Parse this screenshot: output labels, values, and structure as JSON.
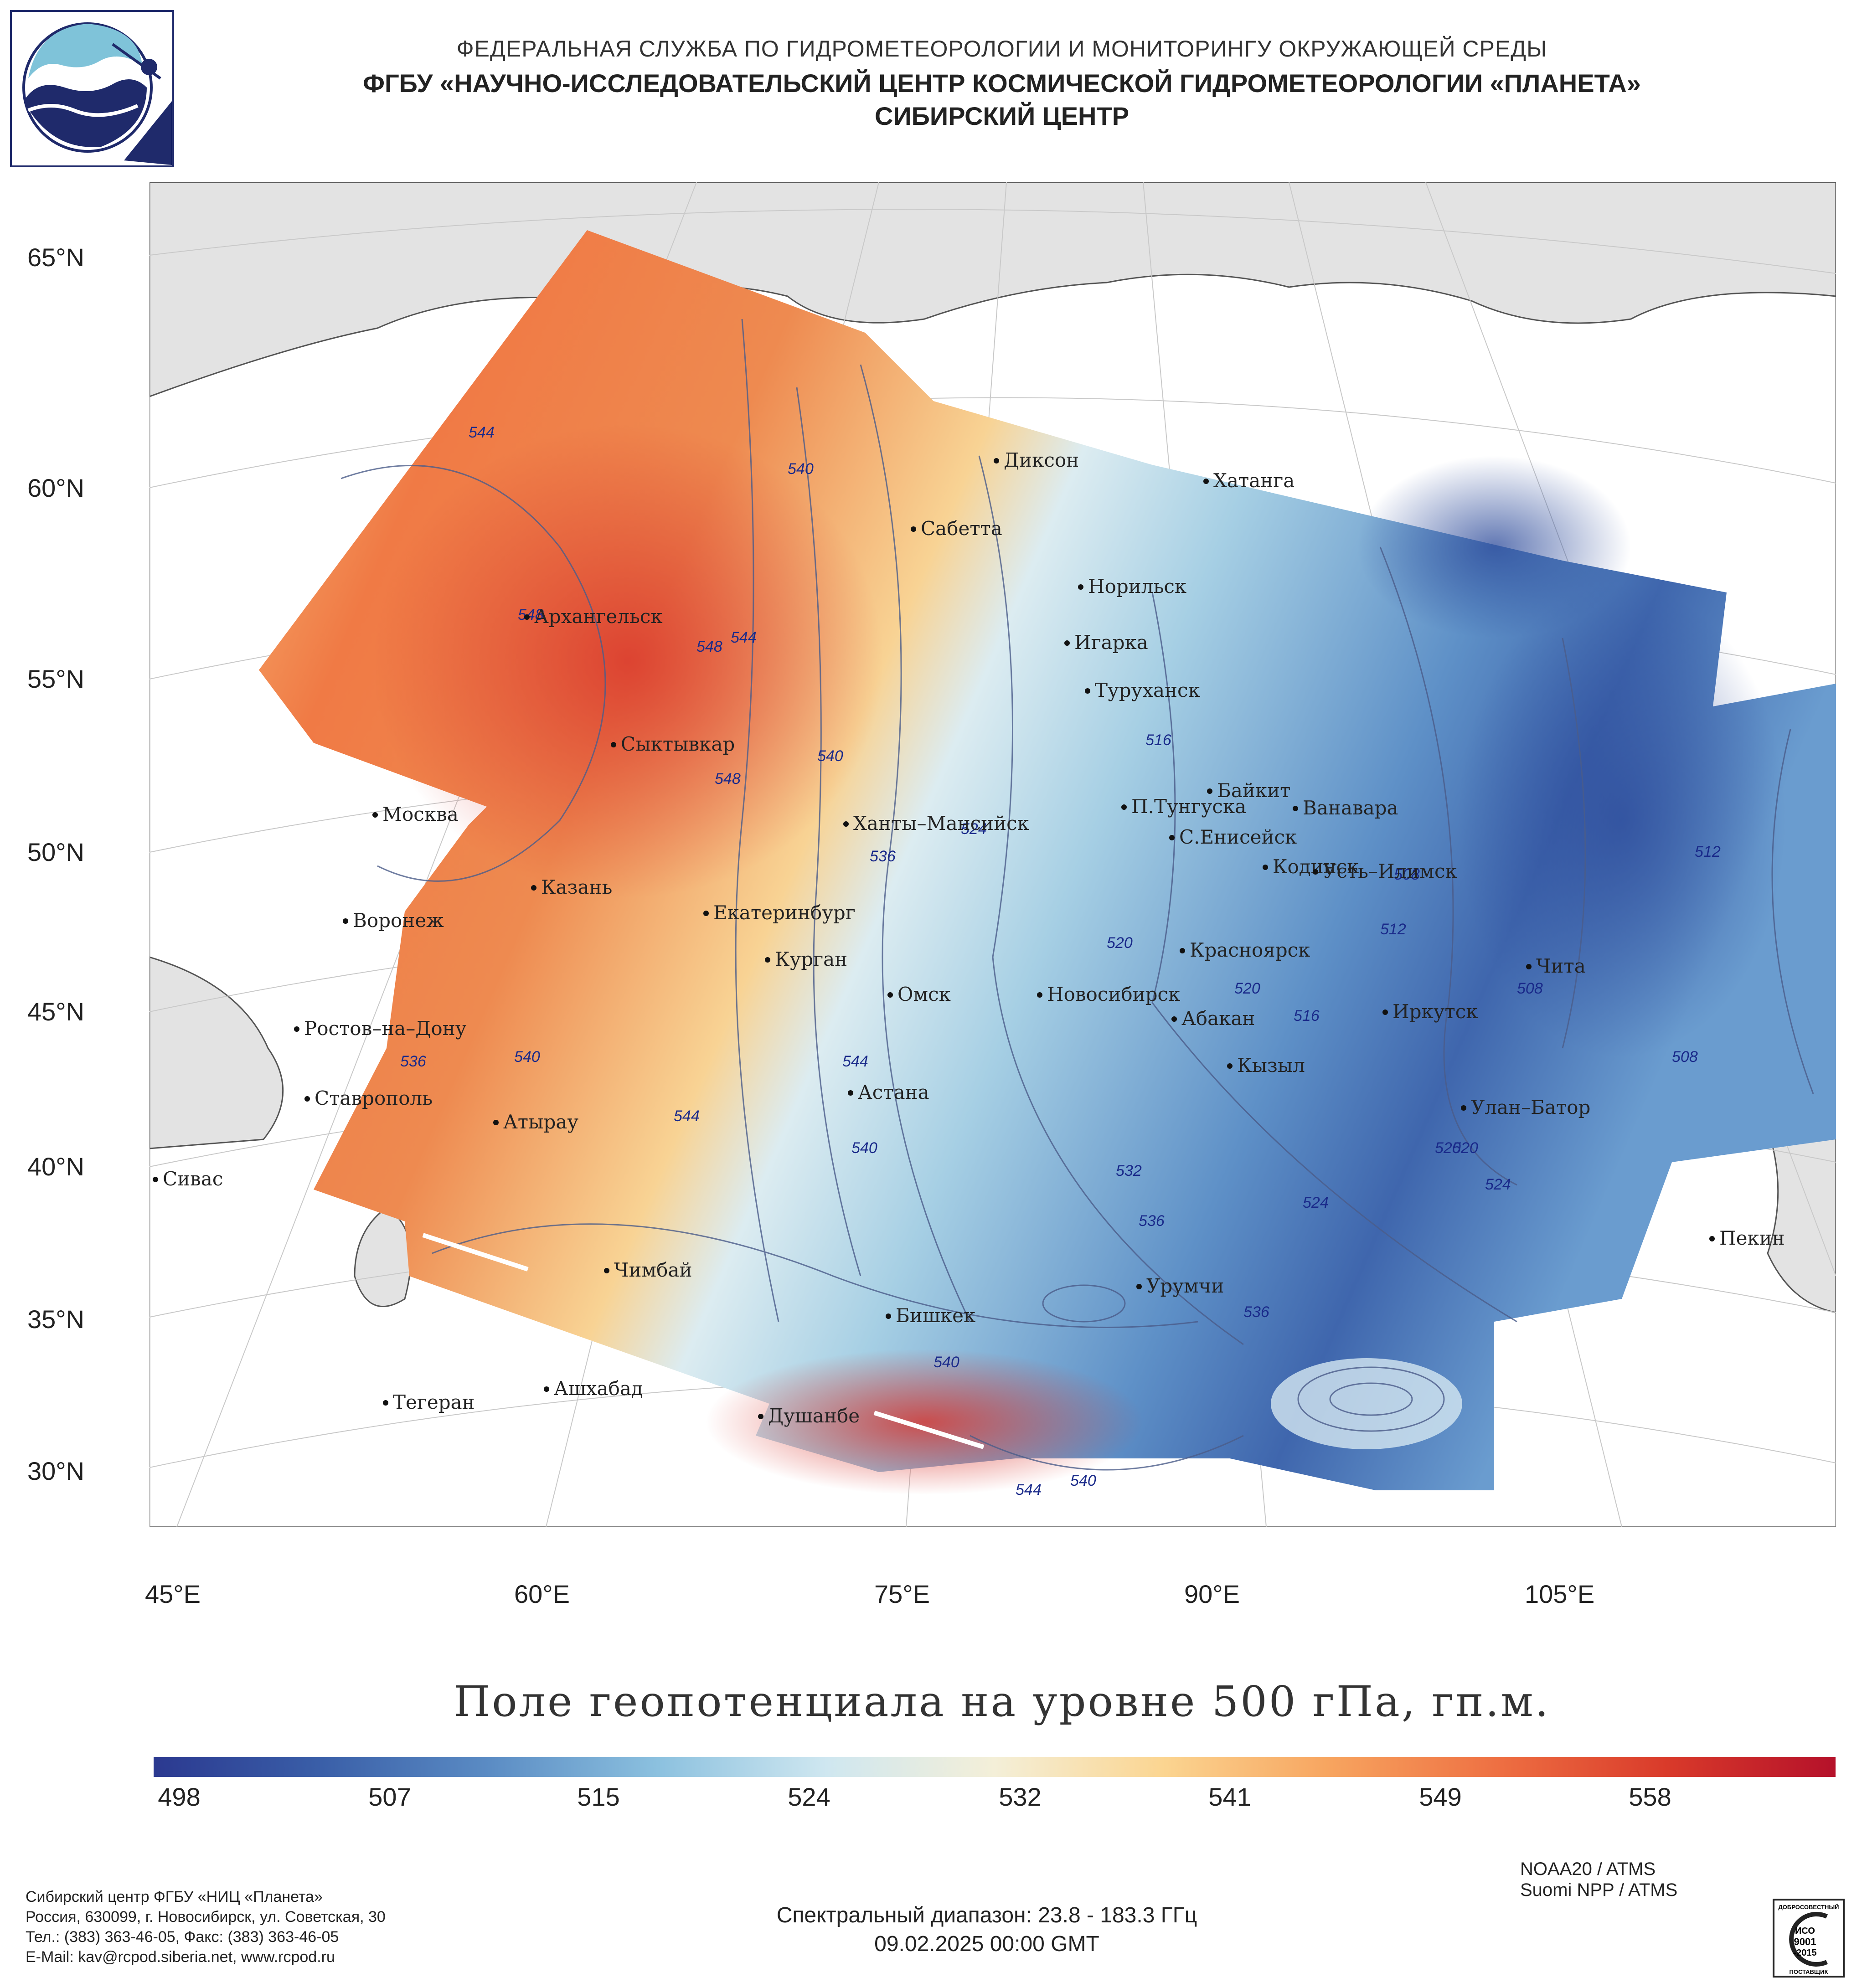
{
  "header": {
    "line1": "ФЕДЕРАЛЬНАЯ СЛУЖБА ПО ГИДРОМЕТЕОРОЛОГИИ И МОНИТОРИНГУ ОКРУЖАЮЩЕЙ СРЕДЫ",
    "line2": "ФГБУ «НАУЧНО-ИССЛЕДОВАТЕЛЬСКИЙ ЦЕНТР КОСМИЧЕСКОЙ ГИДРОМЕТЕОРОЛОГИИ «ПЛАНЕТА»",
    "line3": "СИБИРСКИЙ ЦЕНТР"
  },
  "map": {
    "lat_labels": [
      "65°N",
      "60°N",
      "55°N",
      "50°N",
      "45°N",
      "40°N",
      "35°N",
      "30°N"
    ],
    "lon_labels": [
      "45°E",
      "60°E",
      "75°E",
      "90°E",
      "105°E"
    ],
    "cities": [
      {
        "name": "Диксон"
      },
      {
        "name": "Хатанга"
      },
      {
        "name": "Сабетта"
      },
      {
        "name": "Норильск"
      },
      {
        "name": "Игарка"
      },
      {
        "name": "Туруханск"
      },
      {
        "name": "Архангельск"
      },
      {
        "name": "Сыктывкар"
      },
      {
        "name": "Байкит"
      },
      {
        "name": "П.Тунгуска"
      },
      {
        "name": "Ванавара"
      },
      {
        "name": "Москва"
      },
      {
        "name": "Ханты–Мансийск"
      },
      {
        "name": "С.Енисейск"
      },
      {
        "name": "Кодинск"
      },
      {
        "name": "Усть–Илимск"
      },
      {
        "name": "Казань"
      },
      {
        "name": "Екатеринбург"
      },
      {
        "name": "Воронеж"
      },
      {
        "name": "Красноярск"
      },
      {
        "name": "Курган"
      },
      {
        "name": "Чита"
      },
      {
        "name": "Омск"
      },
      {
        "name": "Новосибирск"
      },
      {
        "name": "Иркутск"
      },
      {
        "name": "Абакан"
      },
      {
        "name": "Ростов–на–Дону"
      },
      {
        "name": "Кызыл"
      },
      {
        "name": "Ставрополь"
      },
      {
        "name": "Астана"
      },
      {
        "name": "Улан–Батор"
      },
      {
        "name": "Атырау"
      },
      {
        "name": "Сивас"
      },
      {
        "name": "Пекин"
      },
      {
        "name": "Чимбай"
      },
      {
        "name": "Урумчи"
      },
      {
        "name": "Бишкек"
      },
      {
        "name": "Ашхабад"
      },
      {
        "name": "Тегеран"
      },
      {
        "name": "Душанбе"
      }
    ],
    "contour_labels": [
      "544",
      "540",
      "548",
      "544",
      "548",
      "540",
      "548",
      "536",
      "524",
      "516",
      "508",
      "512",
      "512",
      "520",
      "520",
      "508",
      "520",
      "516",
      "508",
      "536",
      "540",
      "544",
      "544",
      "540",
      "532",
      "536",
      "520",
      "524",
      "524",
      "536",
      "540",
      "544",
      "540"
    ]
  },
  "map_title": "Поле геопотенциала на уровне 500 гПа, гп.м.",
  "colorbar": {
    "ticks": [
      "498",
      "507",
      "515",
      "524",
      "532",
      "541",
      "549",
      "558"
    ],
    "stops": [
      "#2b3990",
      "#3a5fa8",
      "#5b8cc4",
      "#8cc1df",
      "#cfe7f0",
      "#f4efd8",
      "#fbd591",
      "#f7a45f",
      "#ee6f42",
      "#d93a2a",
      "#b5112a"
    ]
  },
  "footer": {
    "org_lines": [
      "Сибирский центр ФГБУ «НИЦ «Планета»",
      "Россия, 630099, г. Новосибирск, ул. Советская, 30",
      "Тел.: (383) 363-46-05, Факс: (383) 363-46-05",
      "E-Mail: kav@rcpod.siberia.net, www.rcpod.ru"
    ],
    "satellites": [
      "NOAA20 / ATMS",
      "Suomi NPP / ATMS"
    ],
    "spectral": "Спектральный диапазон: 23.8 - 183.3 ГГц",
    "datetime": "09.02.2025 00:00 GMT",
    "iso_text": [
      "ДОБРОСОВЕСТНЫЙ",
      "ИСО",
      "9001",
      "-2015",
      "ПОСТАВЩИК"
    ]
  }
}
